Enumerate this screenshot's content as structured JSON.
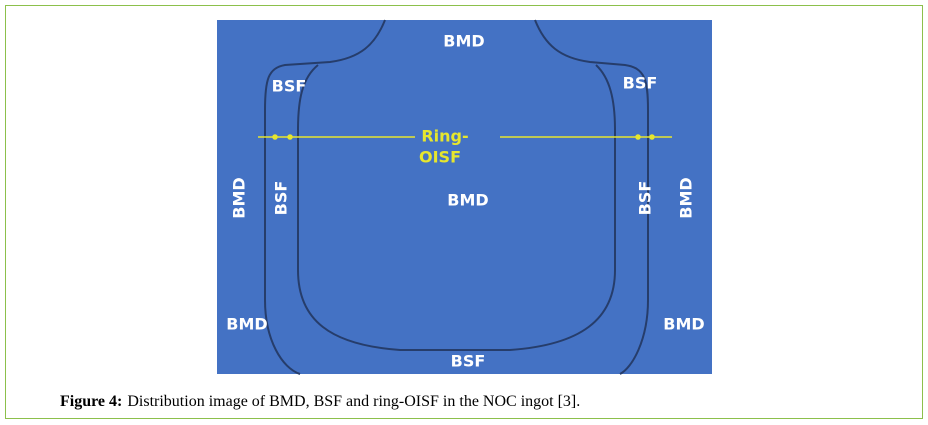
{
  "figure": {
    "labels": [
      "BMD",
      "BSF",
      "BSF",
      "Ring-",
      "OISF",
      "BMD",
      "BMD",
      "BSF",
      "BSF",
      "BMD",
      "BMD",
      "BMD",
      "BSF"
    ],
    "caption": {
      "label": "Figure 4:",
      "text": "Distribution image of BMD, BSF and ring-OISF in the NOC ingot [3]."
    }
  }
}
